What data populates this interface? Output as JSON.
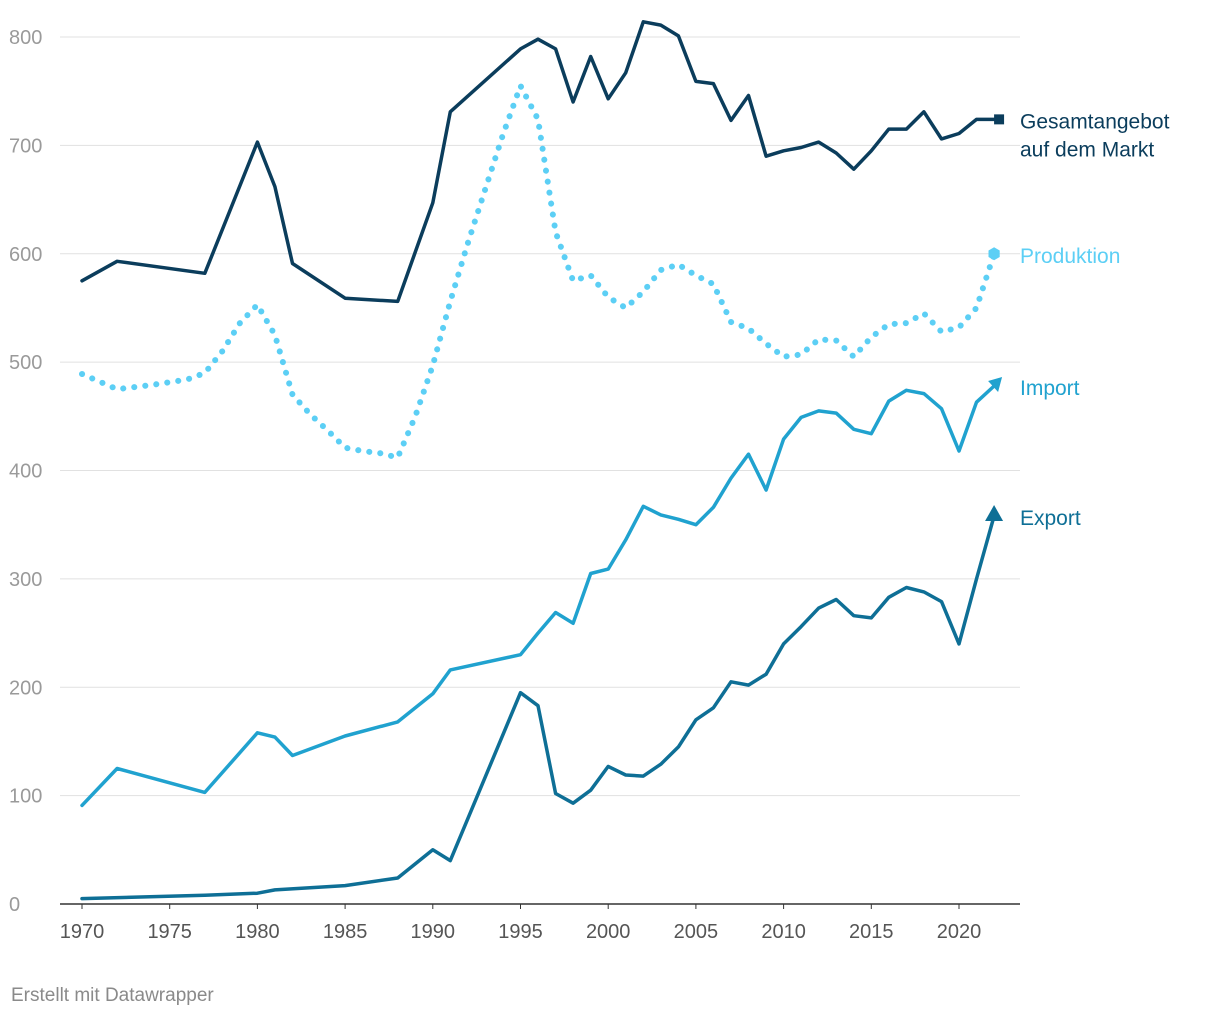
{
  "chart_data": {
    "type": "line",
    "title": "",
    "xlabel": "",
    "ylabel": "",
    "xlim": [
      1969.5,
      2023.2
    ],
    "ylim": [
      0,
      820
    ],
    "yticks": [
      0,
      100,
      200,
      300,
      400,
      500,
      600,
      700,
      800
    ],
    "xticks": [
      1970,
      1975,
      1980,
      1985,
      1990,
      1995,
      2000,
      2005,
      2010,
      2015,
      2020
    ],
    "grid": true,
    "legend": "inline-right",
    "series": [
      {
        "name": "Gesamtangebot auf dem Markt",
        "label_lines": [
          "Gesamtangebot",
          "auf dem Markt"
        ],
        "color": "#0b3d5c",
        "style": "solid",
        "marker": "square",
        "points": [
          [
            1970,
            575
          ],
          [
            1972,
            593
          ],
          [
            1977,
            582
          ],
          [
            1980,
            703
          ],
          [
            1981,
            662
          ],
          [
            1982,
            591
          ],
          [
            1985,
            559
          ],
          [
            1988,
            556
          ],
          [
            1990,
            647
          ],
          [
            1991,
            731
          ],
          [
            1995,
            789
          ],
          [
            1996,
            798
          ],
          [
            1997,
            789
          ],
          [
            1998,
            740
          ],
          [
            1999,
            782
          ],
          [
            2000,
            743
          ],
          [
            2001,
            767
          ],
          [
            2002,
            814
          ],
          [
            2003,
            811
          ],
          [
            2004,
            801
          ],
          [
            2005,
            759
          ],
          [
            2006,
            757
          ],
          [
            2007,
            723
          ],
          [
            2008,
            746
          ],
          [
            2009,
            690
          ],
          [
            2010,
            695
          ],
          [
            2011,
            698
          ],
          [
            2012,
            703
          ],
          [
            2013,
            693
          ],
          [
            2014,
            678
          ],
          [
            2015,
            695
          ],
          [
            2016,
            715
          ],
          [
            2017,
            715
          ],
          [
            2018,
            731
          ],
          [
            2019,
            706
          ],
          [
            2020,
            711
          ],
          [
            2021,
            724
          ],
          [
            2022,
            724
          ]
        ]
      },
      {
        "name": "Produktion",
        "label_lines": [
          "Produktion"
        ],
        "color": "#5ccff5",
        "style": "dotted",
        "marker": "hexagon",
        "points": [
          [
            1970,
            489
          ],
          [
            1972,
            475
          ],
          [
            1974,
            479
          ],
          [
            1976,
            484
          ],
          [
            1977,
            490
          ],
          [
            1978,
            510
          ],
          [
            1979,
            536
          ],
          [
            1980,
            553
          ],
          [
            1981,
            525
          ],
          [
            1982,
            470
          ],
          [
            1983,
            452
          ],
          [
            1984,
            437
          ],
          [
            1985,
            421
          ],
          [
            1986,
            418
          ],
          [
            1987,
            416
          ],
          [
            1988,
            412
          ],
          [
            1989,
            450
          ],
          [
            1990,
            497
          ],
          [
            1991,
            556
          ],
          [
            1992,
            610
          ],
          [
            1993,
            660
          ],
          [
            1994,
            710
          ],
          [
            1995,
            755
          ],
          [
            1996,
            724
          ],
          [
            1997,
            620
          ],
          [
            1998,
            575
          ],
          [
            1999,
            580
          ],
          [
            2000,
            560
          ],
          [
            2001,
            550
          ],
          [
            2002,
            565
          ],
          [
            2003,
            585
          ],
          [
            2004,
            590
          ],
          [
            2005,
            580
          ],
          [
            2006,
            572
          ],
          [
            2007,
            537
          ],
          [
            2008,
            531
          ],
          [
            2009,
            517
          ],
          [
            2010,
            505
          ],
          [
            2011,
            507
          ],
          [
            2012,
            521
          ],
          [
            2013,
            520
          ],
          [
            2014,
            505
          ],
          [
            2015,
            523
          ],
          [
            2016,
            535
          ],
          [
            2017,
            536
          ],
          [
            2018,
            545
          ],
          [
            2019,
            528
          ],
          [
            2020,
            532
          ],
          [
            2021,
            550
          ],
          [
            2022,
            600
          ]
        ]
      },
      {
        "name": "Import",
        "label_lines": [
          "Import"
        ],
        "color": "#20a2cf",
        "style": "solid",
        "marker": "triangle-ne",
        "points": [
          [
            1970,
            91
          ],
          [
            1972,
            125
          ],
          [
            1977,
            103
          ],
          [
            1980,
            158
          ],
          [
            1981,
            154
          ],
          [
            1982,
            137
          ],
          [
            1985,
            155
          ],
          [
            1988,
            168
          ],
          [
            1990,
            194
          ],
          [
            1991,
            216
          ],
          [
            1995,
            230
          ],
          [
            1996,
            250
          ],
          [
            1997,
            269
          ],
          [
            1998,
            259
          ],
          [
            1999,
            305
          ],
          [
            2000,
            309
          ],
          [
            2001,
            336
          ],
          [
            2002,
            367
          ],
          [
            2003,
            359
          ],
          [
            2004,
            355
          ],
          [
            2005,
            350
          ],
          [
            2006,
            366
          ],
          [
            2007,
            393
          ],
          [
            2008,
            415
          ],
          [
            2009,
            382
          ],
          [
            2010,
            429
          ],
          [
            2011,
            449
          ],
          [
            2012,
            455
          ],
          [
            2013,
            453
          ],
          [
            2014,
            438
          ],
          [
            2015,
            434
          ],
          [
            2016,
            464
          ],
          [
            2017,
            474
          ],
          [
            2018,
            471
          ],
          [
            2019,
            457
          ],
          [
            2020,
            418
          ],
          [
            2021,
            463
          ],
          [
            2022,
            478
          ]
        ]
      },
      {
        "name": "Export",
        "label_lines": [
          "Export"
        ],
        "color": "#0e6f96",
        "style": "solid",
        "marker": "triangle-up",
        "points": [
          [
            1970,
            5
          ],
          [
            1977,
            8
          ],
          [
            1980,
            10
          ],
          [
            1981,
            13
          ],
          [
            1985,
            17
          ],
          [
            1988,
            24
          ],
          [
            1990,
            50
          ],
          [
            1991,
            40
          ],
          [
            1995,
            195
          ],
          [
            1996,
            183
          ],
          [
            1997,
            102
          ],
          [
            1998,
            93
          ],
          [
            1999,
            105
          ],
          [
            2000,
            127
          ],
          [
            2001,
            119
          ],
          [
            2002,
            118
          ],
          [
            2003,
            129
          ],
          [
            2004,
            145
          ],
          [
            2005,
            170
          ],
          [
            2006,
            181
          ],
          [
            2007,
            205
          ],
          [
            2008,
            202
          ],
          [
            2009,
            212
          ],
          [
            2010,
            240
          ],
          [
            2011,
            256
          ],
          [
            2012,
            273
          ],
          [
            2013,
            281
          ],
          [
            2014,
            266
          ],
          [
            2015,
            264
          ],
          [
            2016,
            283
          ],
          [
            2017,
            292
          ],
          [
            2018,
            288
          ],
          [
            2019,
            279
          ],
          [
            2020,
            240
          ],
          [
            2021,
            300
          ],
          [
            2022,
            358
          ]
        ]
      }
    ]
  },
  "footer": {
    "credit": "Erstellt mit Datawrapper"
  }
}
